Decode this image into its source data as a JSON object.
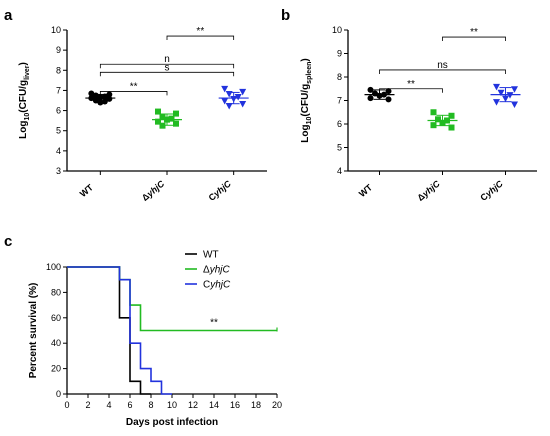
{
  "chart_data": [
    {
      "panel": "a",
      "type": "scatter",
      "ylabel": "Log10(CFU/gliver)",
      "ylabel_parts": {
        "pre": "Log",
        "sub1": "10",
        "mid": "(CFU/g",
        "sub2": "liver",
        "post": ")"
      },
      "ylim": [
        3,
        10
      ],
      "yticks": [
        "3",
        "4",
        "5",
        "6",
        "7",
        "8",
        "9",
        "10"
      ],
      "categories": [
        {
          "pre": "",
          "ital": "",
          "plain": "WT"
        },
        {
          "pre": "Δ",
          "ital": "yhjC",
          "plain": ""
        },
        {
          "pre": "C",
          "ital": "yhjC",
          "plain": ""
        }
      ],
      "groups": [
        {
          "category": "WT",
          "color": "#000000",
          "marker": "circle",
          "mean": 6.62,
          "sd": 0.18,
          "points": [
            6.85,
            6.8,
            6.75,
            6.7,
            6.65,
            6.62,
            6.58,
            6.5,
            6.45,
            6.4
          ]
        },
        {
          "category": "ΔyhjC",
          "color": "#22bb22",
          "marker": "square",
          "mean": 5.55,
          "sd": 0.28,
          "points": [
            5.95,
            5.85,
            5.7,
            5.6,
            5.55,
            5.45,
            5.35,
            5.25
          ]
        },
        {
          "category": "CyhjC",
          "color": "#2233dd",
          "marker": "triangle-down",
          "mean": 6.62,
          "sd": 0.28,
          "points": [
            7.1,
            6.95,
            6.85,
            6.7,
            6.6,
            6.5,
            6.35,
            6.25
          ]
        }
      ],
      "comparisons": [
        {
          "from": 1,
          "to": 2,
          "y": 9.7,
          "label": "**"
        },
        {
          "from": 0,
          "to": 2,
          "y": 8.3,
          "label": "n"
        },
        {
          "from": 0,
          "to": 2,
          "y": 7.9,
          "label": "s"
        },
        {
          "from": 0,
          "to": 1,
          "y": 6.95,
          "label": "**"
        }
      ]
    },
    {
      "panel": "b",
      "type": "scatter",
      "ylabel": "Log10(CFU/gspleen)",
      "ylabel_parts": {
        "pre": "Log",
        "sub1": "10",
        "mid": "(CFU/g",
        "sub2": "spleen",
        "post": ")"
      },
      "ylim": [
        4,
        10
      ],
      "yticks": [
        "4",
        "5",
        "6",
        "7",
        "8",
        "9",
        "10"
      ],
      "categories": [
        {
          "pre": "",
          "ital": "",
          "plain": "WT"
        },
        {
          "pre": "Δ",
          "ital": "yhjC",
          "plain": ""
        },
        {
          "pre": "C",
          "ital": "yhjC",
          "plain": ""
        }
      ],
      "groups": [
        {
          "category": "WT",
          "color": "#000000",
          "marker": "circle",
          "mean": 7.25,
          "sd": 0.2,
          "points": [
            7.45,
            7.4,
            7.3,
            7.25,
            7.2,
            7.1,
            7.05
          ]
        },
        {
          "category": "ΔyhjC",
          "color": "#22bb22",
          "marker": "square",
          "mean": 6.15,
          "sd": 0.22,
          "points": [
            6.5,
            6.35,
            6.2,
            6.15,
            6.05,
            5.95,
            5.85
          ]
        },
        {
          "category": "CyhjC",
          "color": "#2233dd",
          "marker": "triangle-down",
          "mean": 7.25,
          "sd": 0.3,
          "points": [
            7.6,
            7.5,
            7.35,
            7.25,
            7.1,
            6.95,
            6.85
          ]
        }
      ],
      "comparisons": [
        {
          "from": 1,
          "to": 2,
          "y": 9.7,
          "label": "**"
        },
        {
          "from": 0,
          "to": 2,
          "y": 8.3,
          "label": "ns"
        },
        {
          "from": 0,
          "to": 1,
          "y": 7.5,
          "label": "**"
        }
      ]
    },
    {
      "panel": "c",
      "type": "line",
      "subtype": "step",
      "xlabel": "Days post infection",
      "ylabel": "Percent survival (%)",
      "xlim": [
        0,
        20
      ],
      "ylim": [
        0,
        100
      ],
      "xticks": [
        "0",
        "2",
        "4",
        "6",
        "8",
        "10",
        "12",
        "14",
        "16",
        "18",
        "20"
      ],
      "yticks": [
        "0",
        "20",
        "40",
        "60",
        "80",
        "100"
      ],
      "legend_position": "top-right",
      "series": [
        {
          "name": "WT",
          "name_parts": {
            "pre": "WT",
            "ital": ""
          },
          "color": "#000000",
          "steps": [
            [
              0,
              100
            ],
            [
              5,
              100
            ],
            [
              5,
              60
            ],
            [
              6,
              60
            ],
            [
              6,
              10
            ],
            [
              7,
              10
            ],
            [
              7,
              0
            ],
            [
              8,
              0
            ]
          ]
        },
        {
          "name": "ΔyhjC",
          "name_parts": {
            "pre": "Δ",
            "ital": "yhjC"
          },
          "color": "#22bb22",
          "steps": [
            [
              0,
              100
            ],
            [
              5,
              100
            ],
            [
              5,
              90
            ],
            [
              6,
              90
            ],
            [
              6,
              70
            ],
            [
              7,
              70
            ],
            [
              7,
              50
            ],
            [
              20,
              50
            ]
          ]
        },
        {
          "name": "CyhjC",
          "name_parts": {
            "pre": "C",
            "ital": "yhjC"
          },
          "color": "#2233dd",
          "steps": [
            [
              0,
              100
            ],
            [
              5,
              100
            ],
            [
              5,
              90
            ],
            [
              6,
              90
            ],
            [
              6,
              40
            ],
            [
              7,
              40
            ],
            [
              7,
              20
            ],
            [
              8,
              20
            ],
            [
              8,
              10
            ],
            [
              9,
              10
            ],
            [
              9,
              0
            ],
            [
              10,
              0
            ]
          ]
        }
      ],
      "annotation": "**"
    }
  ]
}
